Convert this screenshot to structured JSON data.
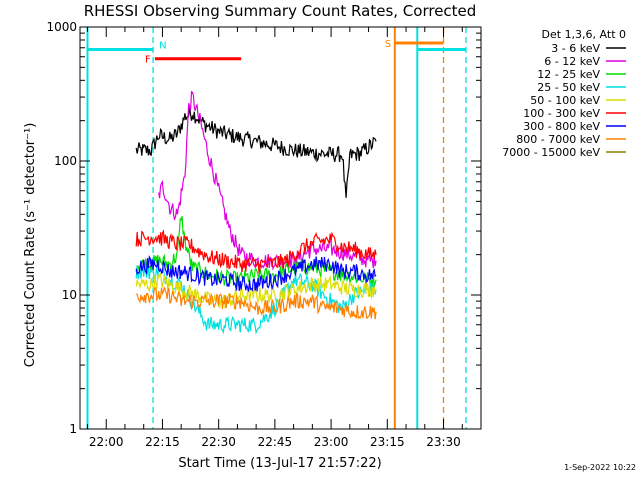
{
  "chart_data": {
    "type": "line",
    "title": "RHESSI Observing Summary Count Rates, Corrected",
    "xlabel": "Start Time (13-Jul-17 21:57:22)",
    "ylabel": "Corrected Count Rate (s⁻¹ detector⁻¹)",
    "footer_date": "1-Sep-2022 10:22",
    "yscale": "log",
    "ylim": [
      1,
      1000
    ],
    "xlim_minutes": [
      -7,
      100
    ],
    "x_tick_labels": [
      "22:00",
      "22:15",
      "22:30",
      "22:45",
      "23:00",
      "23:15",
      "23:30"
    ],
    "x_tick_minutes": [
      0,
      15,
      30,
      45,
      60,
      75,
      90
    ],
    "y_tick_labels": [
      "1",
      "10",
      "100",
      "1000"
    ],
    "y_tick_values": [
      1,
      10,
      100,
      1000
    ],
    "legend": {
      "title": "Det 1,3,6, Att 0",
      "placement": "right"
    },
    "series": [
      {
        "name": "3 - 6 keV",
        "color": "#000000",
        "points": [
          [
            8,
            120
          ],
          [
            12,
            120
          ],
          [
            14,
            155
          ],
          [
            17,
            145
          ],
          [
            19,
            160
          ],
          [
            21,
            215
          ],
          [
            23,
            230
          ],
          [
            26,
            190
          ],
          [
            30,
            165
          ],
          [
            35,
            150
          ],
          [
            40,
            140
          ],
          [
            45,
            130
          ],
          [
            50,
            120
          ],
          [
            55,
            115
          ],
          [
            60,
            112
          ],
          [
            63,
            112
          ],
          [
            64,
            50
          ],
          [
            65,
            110
          ],
          [
            68,
            115
          ],
          [
            72,
            140
          ]
        ]
      },
      {
        "name": "6 - 12 keV",
        "color": "#e000e0",
        "points": [
          [
            14,
            55
          ],
          [
            15,
            65
          ],
          [
            16,
            55
          ],
          [
            17,
            45
          ],
          [
            19,
            40
          ],
          [
            21,
            80
          ],
          [
            22,
            250
          ],
          [
            23,
            300
          ],
          [
            25,
            200
          ],
          [
            27,
            120
          ],
          [
            30,
            60
          ],
          [
            33,
            30
          ],
          [
            36,
            20
          ],
          [
            40,
            18
          ],
          [
            45,
            18
          ],
          [
            50,
            18
          ],
          [
            55,
            22
          ],
          [
            60,
            22
          ],
          [
            65,
            20
          ],
          [
            70,
            18
          ],
          [
            72,
            18
          ]
        ]
      },
      {
        "name": "12 - 25 keV",
        "color": "#00dd00",
        "points": [
          [
            8,
            17
          ],
          [
            12,
            17
          ],
          [
            14,
            18
          ],
          [
            17,
            17
          ],
          [
            19,
            20
          ],
          [
            20,
            40
          ],
          [
            21,
            25
          ],
          [
            23,
            16
          ],
          [
            28,
            14
          ],
          [
            35,
            13
          ],
          [
            40,
            14
          ],
          [
            45,
            14
          ],
          [
            50,
            16
          ],
          [
            55,
            16
          ],
          [
            60,
            15
          ],
          [
            65,
            14
          ],
          [
            70,
            13
          ],
          [
            72,
            13
          ]
        ]
      },
      {
        "name": "25 - 50 keV",
        "color": "#00e0e0",
        "points": [
          [
            8,
            15
          ],
          [
            12,
            15
          ],
          [
            14,
            15
          ],
          [
            17,
            13
          ],
          [
            20,
            12
          ],
          [
            24,
            8
          ],
          [
            27,
            6
          ],
          [
            30,
            6
          ],
          [
            35,
            6
          ],
          [
            40,
            6
          ],
          [
            43,
            7
          ],
          [
            45,
            8
          ],
          [
            50,
            13
          ],
          [
            55,
            12
          ],
          [
            58,
            10
          ],
          [
            60,
            9
          ],
          [
            63,
            8
          ],
          [
            66,
            10
          ],
          [
            70,
            11
          ],
          [
            72,
            11
          ]
        ]
      },
      {
        "name": "50 - 100 keV",
        "color": "#dddd00",
        "points": [
          [
            8,
            12
          ],
          [
            12,
            12
          ],
          [
            14,
            13
          ],
          [
            17,
            12
          ],
          [
            20,
            11
          ],
          [
            24,
            10
          ],
          [
            28,
            9
          ],
          [
            32,
            9
          ],
          [
            36,
            10
          ],
          [
            40,
            10
          ],
          [
            45,
            10
          ],
          [
            50,
            11
          ],
          [
            55,
            12
          ],
          [
            60,
            12
          ],
          [
            65,
            11
          ],
          [
            70,
            11
          ],
          [
            72,
            11
          ]
        ]
      },
      {
        "name": "100 - 300 keV",
        "color": "#ff0000",
        "points": [
          [
            8,
            26
          ],
          [
            12,
            27
          ],
          [
            14,
            27
          ],
          [
            17,
            25
          ],
          [
            19,
            24
          ],
          [
            22,
            24
          ],
          [
            25,
            21
          ],
          [
            28,
            19
          ],
          [
            32,
            18
          ],
          [
            36,
            17
          ],
          [
            40,
            17
          ],
          [
            44,
            17
          ],
          [
            48,
            18
          ],
          [
            52,
            22
          ],
          [
            56,
            25
          ],
          [
            60,
            26
          ],
          [
            63,
            23
          ],
          [
            66,
            22
          ],
          [
            70,
            20
          ],
          [
            72,
            20
          ]
        ]
      },
      {
        "name": "300 - 800 keV",
        "color": "#0000ff",
        "points": [
          [
            8,
            16
          ],
          [
            12,
            17
          ],
          [
            14,
            17
          ],
          [
            17,
            15
          ],
          [
            20,
            15
          ],
          [
            24,
            14
          ],
          [
            28,
            13
          ],
          [
            32,
            13
          ],
          [
            36,
            12
          ],
          [
            40,
            12
          ],
          [
            45,
            13
          ],
          [
            50,
            15
          ],
          [
            55,
            17
          ],
          [
            60,
            17
          ],
          [
            63,
            15
          ],
          [
            66,
            15
          ],
          [
            70,
            14
          ],
          [
            72,
            14
          ]
        ]
      },
      {
        "name": "800 - 7000 keV",
        "color": "#ff8000",
        "points": [
          [
            8,
            10
          ],
          [
            12,
            10
          ],
          [
            14,
            10
          ],
          [
            17,
            10
          ],
          [
            20,
            9
          ],
          [
            24,
            9
          ],
          [
            28,
            9
          ],
          [
            32,
            9
          ],
          [
            36,
            9
          ],
          [
            40,
            8
          ],
          [
            45,
            8
          ],
          [
            50,
            9
          ],
          [
            55,
            9
          ],
          [
            58,
            8
          ],
          [
            62,
            8
          ],
          [
            66,
            7.5
          ],
          [
            70,
            7.5
          ],
          [
            72,
            7.5
          ]
        ]
      },
      {
        "name": "7000 - 15000 keV",
        "color": "#808000",
        "points": []
      }
    ],
    "bars": [
      {
        "label": "N",
        "color": "#00e0e0",
        "segments": [
          [
            -5,
            12.5
          ],
          [
            83,
            96
          ]
        ],
        "level": 680
      },
      {
        "label": "F",
        "color": "#ff0000",
        "segments": [
          [
            13,
            36
          ]
        ],
        "level": 580
      },
      {
        "label": "S",
        "color": "#ff8000",
        "segments": [
          [
            77,
            90
          ]
        ],
        "level": 760
      }
    ],
    "vlines": [
      {
        "x": -5,
        "color": "#00e0e0",
        "style": "solid"
      },
      {
        "x": 12.5,
        "color": "#00e0e0",
        "style": "dashed"
      },
      {
        "x": 77,
        "color": "#ff8000",
        "style": "solid"
      },
      {
        "x": 83,
        "color": "#00e0e0",
        "style": "solid"
      },
      {
        "x": 90,
        "color": "#ff8000",
        "style": "dashed"
      },
      {
        "x": 96,
        "color": "#00e0e0",
        "style": "dashed"
      }
    ]
  }
}
